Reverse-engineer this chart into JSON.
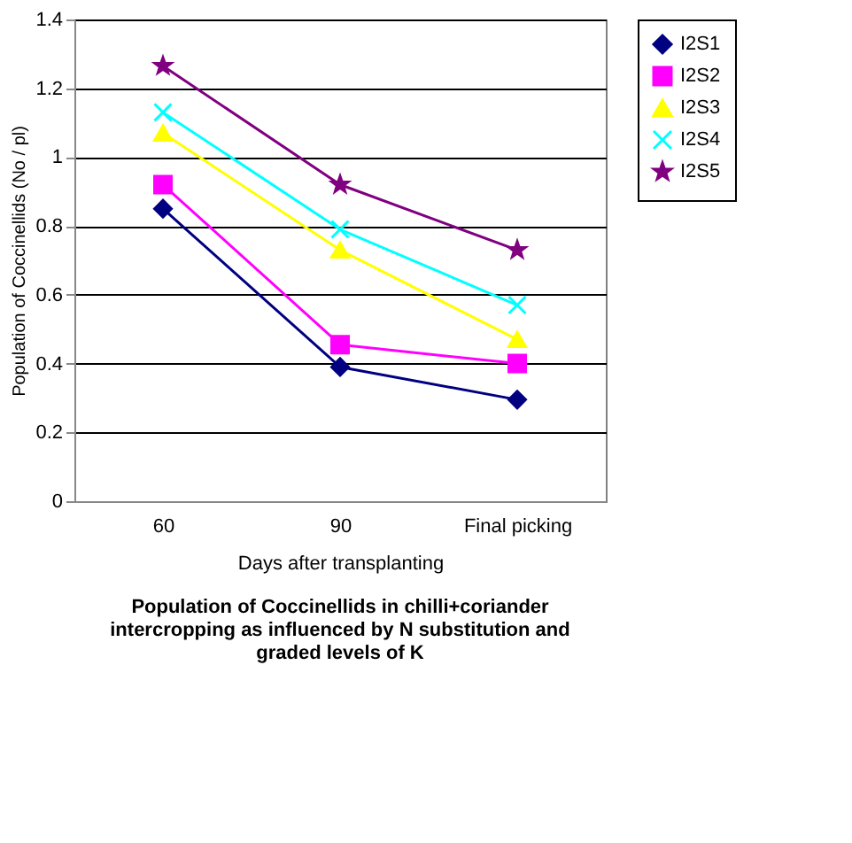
{
  "chart_data": {
    "type": "line",
    "title": [
      "Population of Coccinellids in chilli+coriander",
      "intercropping as influenced by N substitution and",
      "graded levels of K"
    ],
    "xlabel": "Days after transplanting",
    "ylabel": "Population of Coccinellids (No / pl)",
    "categories": [
      "60",
      "90",
      "Final picking"
    ],
    "ylim": [
      0,
      1.4
    ],
    "yticks": [
      0,
      0.2,
      0.4,
      0.6,
      0.8,
      1,
      1.2,
      1.4
    ],
    "grid": "y",
    "legend": "right",
    "series": [
      {
        "name": "I2S1",
        "color": "#000080",
        "marker": "diamond",
        "values": [
          0.85,
          0.39,
          0.295
        ]
      },
      {
        "name": "I2S2",
        "color": "#ff00ff",
        "marker": "square",
        "values": [
          0.92,
          0.455,
          0.4
        ]
      },
      {
        "name": "I2S3",
        "color": "#ffff00",
        "marker": "triangle",
        "values": [
          1.07,
          0.73,
          0.47
        ]
      },
      {
        "name": "I2S4",
        "color": "#00ffff",
        "marker": "cross",
        "values": [
          1.13,
          0.79,
          0.57
        ]
      },
      {
        "name": "I2S5",
        "color": "#800080",
        "marker": "star",
        "values": [
          1.265,
          0.92,
          0.73
        ]
      }
    ]
  }
}
